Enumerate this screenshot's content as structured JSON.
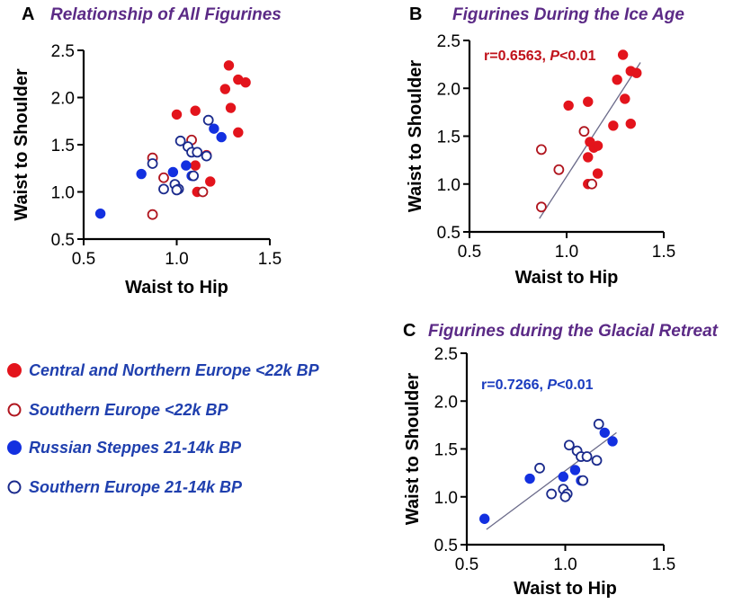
{
  "colors": {
    "red": "#e3141c",
    "darkred": "#b0151e",
    "blue": "#1330e0",
    "navy": "#1a2a8c",
    "title_purple": "#5b2a86",
    "stat_red": "#c0111a",
    "stat_blue": "#1a3bbf",
    "fit_line": "#6b6b8a"
  },
  "legend": {
    "items": [
      {
        "label": "Central and Northern Europe <22k BP",
        "marker": "filled",
        "color": "#e3141c"
      },
      {
        "label": "Southern Europe <22k BP",
        "marker": "open",
        "color": "#b0151e"
      },
      {
        "label": "Russian Steppes 21-14k BP",
        "marker": "filled",
        "color": "#1330e0"
      },
      {
        "label": "Southern Europe 21-14k BP",
        "marker": "open",
        "color": "#1a2a8c"
      }
    ]
  },
  "chart_data": [
    {
      "panel": "A",
      "type": "scatter",
      "title": "Relationship of All Figurines",
      "xlabel": "Waist to Hip",
      "ylabel": "Waist to Shoulder",
      "xlim": [
        0.5,
        1.5
      ],
      "ylim": [
        0.5,
        2.5
      ],
      "xticks": [
        "0.5",
        "1.0",
        "1.5"
      ],
      "yticks": [
        "0.5",
        "1.0",
        "1.5",
        "2.0",
        "2.5"
      ],
      "series": [
        {
          "name": "Central and Northern Europe <22k BP",
          "marker": "filled",
          "color": "#e3141c",
          "points": [
            [
              1.0,
              1.82
            ],
            [
              1.1,
              1.86
            ],
            [
              1.28,
              2.34
            ],
            [
              1.26,
              2.09
            ],
            [
              1.33,
              2.19
            ],
            [
              1.37,
              2.16
            ],
            [
              1.29,
              1.89
            ],
            [
              1.33,
              1.63
            ],
            [
              1.1,
              1.28
            ],
            [
              1.16,
              1.39
            ],
            [
              1.18,
              1.11
            ],
            [
              1.11,
              1.0
            ]
          ]
        },
        {
          "name": "Southern Europe <22k BP",
          "marker": "open",
          "color": "#b0151e",
          "points": [
            [
              0.87,
              1.36
            ],
            [
              0.87,
              0.76
            ],
            [
              0.93,
              1.15
            ],
            [
              1.08,
              1.55
            ],
            [
              1.14,
              1.0
            ]
          ]
        },
        {
          "name": "Russian Steppes 21-14k BP",
          "marker": "filled",
          "color": "#1330e0",
          "points": [
            [
              0.59,
              0.77
            ],
            [
              0.81,
              1.19
            ],
            [
              0.98,
              1.21
            ],
            [
              1.05,
              1.28
            ],
            [
              1.08,
              1.17
            ],
            [
              1.2,
              1.67
            ],
            [
              1.24,
              1.58
            ]
          ]
        },
        {
          "name": "Southern Europe 21-14k BP",
          "marker": "open",
          "color": "#1a2a8c",
          "points": [
            [
              0.87,
              1.3
            ],
            [
              0.93,
              1.03
            ],
            [
              0.99,
              1.08
            ],
            [
              1.01,
              1.03
            ],
            [
              1.02,
              1.54
            ],
            [
              1.06,
              1.48
            ],
            [
              1.08,
              1.42
            ],
            [
              1.09,
              1.17
            ],
            [
              1.11,
              1.42
            ],
            [
              1.16,
              1.38
            ],
            [
              1.17,
              1.76
            ],
            [
              1.0,
              1.02
            ]
          ]
        }
      ]
    },
    {
      "panel": "B",
      "type": "scatter",
      "title": "Figurines During the Ice Age",
      "xlabel": "Waist to Hip",
      "ylabel": "Waist to Shoulder",
      "xlim": [
        0.5,
        1.5
      ],
      "ylim": [
        0.5,
        2.5
      ],
      "xticks": [
        "0.5",
        "1.0",
        "1.5"
      ],
      "yticks": [
        "0.5",
        "1.0",
        "1.5",
        "2.0",
        "2.5"
      ],
      "annotation": {
        "r_text": "r=0.6563, ",
        "p_label": "P",
        "p_text": "<0.01",
        "color": "#c0111a"
      },
      "fit_line": {
        "x": [
          0.86,
          1.38
        ],
        "y": [
          0.64,
          2.27
        ]
      },
      "series": [
        {
          "name": "Central and Northern Europe <22k BP",
          "marker": "filled",
          "color": "#e3141c",
          "points": [
            [
              1.01,
              1.82
            ],
            [
              1.11,
              1.86
            ],
            [
              1.29,
              2.35
            ],
            [
              1.26,
              2.09
            ],
            [
              1.33,
              2.18
            ],
            [
              1.36,
              2.16
            ],
            [
              1.3,
              1.89
            ],
            [
              1.33,
              1.63
            ],
            [
              1.24,
              1.61
            ],
            [
              1.14,
              1.38
            ],
            [
              1.16,
              1.4
            ],
            [
              1.11,
              1.28
            ],
            [
              1.12,
              1.44
            ],
            [
              1.16,
              1.11
            ],
            [
              1.11,
              1.0
            ]
          ]
        },
        {
          "name": "Southern Europe <22k BP",
          "marker": "open",
          "color": "#b0151e",
          "points": [
            [
              0.87,
              1.36
            ],
            [
              0.87,
              0.76
            ],
            [
              0.96,
              1.15
            ],
            [
              1.09,
              1.55
            ],
            [
              1.13,
              1.0
            ]
          ]
        }
      ]
    },
    {
      "panel": "C",
      "type": "scatter",
      "title": "Figurines during the Glacial Retreat",
      "xlabel": "Waist to Hip",
      "ylabel": "Waist to Shoulder",
      "xlim": [
        0.5,
        1.5
      ],
      "ylim": [
        0.5,
        2.5
      ],
      "xticks": [
        "0.5",
        "1.0",
        "1.5"
      ],
      "yticks": [
        "0.5",
        "1.0",
        "1.5",
        "2.0",
        "2.5"
      ],
      "annotation": {
        "r_text": "r=0.7266, ",
        "p_label": "P",
        "p_text": "<0.01",
        "color": "#1a3bbf"
      },
      "fit_line": {
        "x": [
          0.6,
          1.26
        ],
        "y": [
          0.66,
          1.67
        ]
      },
      "series": [
        {
          "name": "Russian Steppes 21-14k BP",
          "marker": "filled",
          "color": "#1330e0",
          "points": [
            [
              0.59,
              0.77
            ],
            [
              0.82,
              1.19
            ],
            [
              0.99,
              1.21
            ],
            [
              1.05,
              1.28
            ],
            [
              1.08,
              1.17
            ],
            [
              1.2,
              1.67
            ],
            [
              1.24,
              1.58
            ]
          ]
        },
        {
          "name": "Southern Europe 21-14k BP",
          "marker": "open",
          "color": "#1a2a8c",
          "points": [
            [
              0.87,
              1.3
            ],
            [
              0.93,
              1.03
            ],
            [
              0.99,
              1.08
            ],
            [
              1.01,
              1.03
            ],
            [
              1.02,
              1.54
            ],
            [
              1.06,
              1.48
            ],
            [
              1.08,
              1.42
            ],
            [
              1.09,
              1.17
            ],
            [
              1.11,
              1.42
            ],
            [
              1.16,
              1.38
            ],
            [
              1.17,
              1.76
            ],
            [
              1.0,
              1.0
            ]
          ]
        }
      ]
    }
  ]
}
